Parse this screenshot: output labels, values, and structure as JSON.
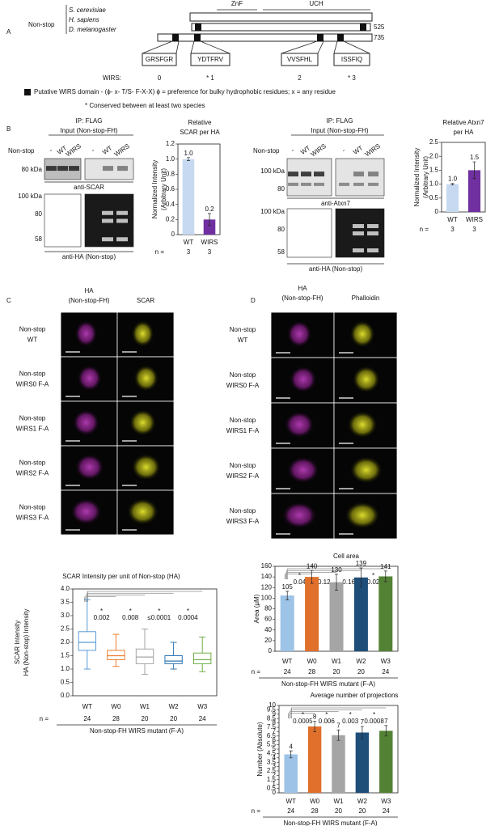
{
  "panel_a": {
    "label": "A",
    "protein": "Non-stop",
    "species": [
      "S. cerevisiae",
      "H. sapiens",
      "D. melanogaster"
    ],
    "domains": [
      "ZnF",
      "UCH"
    ],
    "lengths": [
      "525",
      "735"
    ],
    "motifs": [
      "GRSFGR",
      "YDTFRV",
      "VVSFHL",
      "ISSFIQ"
    ],
    "wirs_label": "WIRS:",
    "wirs_index": [
      "0",
      "* 1",
      "2",
      "* 3"
    ],
    "legend": "Putative WIRS domain - (ϕ- x- T/S- F-X-X) ϕ = preference for bulky hydrophobic residues; x = any residue",
    "footnote": "* Conserved between at least two species"
  },
  "panel_b": {
    "label": "B",
    "blots": [
      {
        "ip": "IP: FLAG",
        "input": "Input (Non-stop-FH)",
        "row_label": "Non-stop",
        "lanes": [
          "-",
          "WT",
          "WIRS",
          "-",
          "WT",
          "WIRS"
        ],
        "upper_markers": [
          "80 kDa"
        ],
        "upper_antibody": "anti-SCAR",
        "lower_markers": [
          "100 kDa",
          "80",
          "58"
        ],
        "lower_antibody": "anti-HA (Non-stop)"
      },
      {
        "ip": "IP: FLAG",
        "input": "Input (Non-stop-FH)",
        "row_label": "Non-stop",
        "lanes": [
          "-",
          "WT",
          "WIRS",
          "-",
          "WT",
          "WIRS"
        ],
        "upper_markers": [
          "100 kDa",
          "80"
        ],
        "upper_antibody": "anti-Atxn7",
        "lower_markers": [
          "100 kDa",
          "80",
          "58"
        ],
        "lower_antibody": "anti-HA (Non-stop)"
      }
    ],
    "charts": [
      {
        "type": "bar",
        "title": [
          "Relative",
          "SCAR per HA"
        ],
        "y_label": [
          "Normalized Intensity",
          "(Arbitrary Unit)"
        ],
        "categories": [
          "WT",
          "WIRS"
        ],
        "values": [
          1.0,
          0.2
        ],
        "value_labels": [
          "1.0",
          "0.2"
        ],
        "errors": [
          0.02,
          0.08
        ],
        "colors": [
          "#c6d9f1",
          "#7030a0"
        ],
        "ylim": [
          0,
          1.2
        ],
        "yticks": [
          0,
          0.2,
          0.4,
          0.6,
          0.8,
          {
            "value": 1.0,
            "label": "1.0"
          },
          1.2
        ],
        "n_label": "n =",
        "n": [
          3,
          3
        ]
      },
      {
        "type": "bar",
        "title": [
          "Relative Atxn7",
          "per HA"
        ],
        "y_label": [
          "Normalized Intensity",
          "(Arbitrary Unit)"
        ],
        "categories": [
          "WT",
          "WIRS"
        ],
        "values": [
          1.0,
          1.5
        ],
        "value_labels": [
          "1.0",
          "1.5"
        ],
        "errors": [
          0.03,
          0.3
        ],
        "colors": [
          "#c6d9f1",
          "#7030a0"
        ],
        "ylim": [
          0,
          2.5
        ],
        "yticks": [
          0,
          0.5,
          {
            "value": 1.0,
            "label": "1.0"
          },
          1.5,
          {
            "value": 2.0,
            "label": "2.0"
          },
          2.5
        ],
        "n_label": "n =",
        "n": [
          3,
          3
        ]
      }
    ]
  },
  "panel_c": {
    "label": "C",
    "columns": [
      [
        "HA",
        "(Non-stop-FH)"
      ],
      [
        "SCAR"
      ]
    ],
    "rows": [
      [
        "Non-stop",
        "WT"
      ],
      [
        "Non-stop",
        "WIRS0 F-A"
      ],
      [
        "Non-stop",
        "WIRS1 F-A"
      ],
      [
        "Non-stop",
        "WIRS2 F-A"
      ],
      [
        "Non-stop",
        "WIRS3 F-A"
      ]
    ],
    "chart": {
      "type": "box",
      "title": "SCAR Intensity per unit of Non-stop (HA)",
      "y_label": [
        "SCAR Intensity",
        "HA (Non-stop) Intensity"
      ],
      "categories": [
        "WT",
        "W0",
        "W1",
        "W2",
        "W3"
      ],
      "boxes": [
        {
          "min": 1.0,
          "q1": 1.7,
          "median": 2.0,
          "q3": 2.4,
          "max": 3.6
        },
        {
          "min": 1.1,
          "q1": 1.35,
          "median": 1.5,
          "q3": 1.7,
          "max": 2.3
        },
        {
          "min": 0.8,
          "q1": 1.2,
          "median": 1.45,
          "q3": 1.75,
          "max": 2.5
        },
        {
          "min": 1.0,
          "q1": 1.2,
          "median": 1.3,
          "q3": 1.5,
          "max": 2.0
        },
        {
          "min": 0.9,
          "q1": 1.2,
          "median": 1.35,
          "q3": 1.6,
          "max": 2.2
        }
      ],
      "colors": [
        "#5b9bd5",
        "#ed7d31",
        "#a5a5a5",
        "#2e75b6",
        "#70ad47"
      ],
      "ylim": [
        0,
        4
      ],
      "yticks": [
        {
          "value": 0,
          "label": "0.0"
        },
        0.5,
        {
          "value": 1,
          "label": "1.0"
        },
        1.5,
        {
          "value": 2,
          "label": "2.0"
        },
        2.5,
        {
          "value": 3,
          "label": "3.0"
        },
        3.5,
        {
          "value": 4,
          "label": "4.0"
        }
      ],
      "significance": [
        {
          "star": "*",
          "p": "0.002"
        },
        {
          "star": "*",
          "p": "0.008"
        },
        {
          "star": "*",
          "p": "≤0.0001"
        },
        {
          "star": "*",
          "p": "0.0004"
        }
      ],
      "n_label": "n =",
      "n": [
        24,
        28,
        20,
        20,
        24
      ],
      "x_label": "Non-stop-FH WIRS mutant (F-A)"
    }
  },
  "panel_d": {
    "label": "D",
    "columns": [
      [
        "HA",
        "(Non-stop-FH)"
      ],
      [
        "Phalloidin"
      ]
    ],
    "rows": [
      [
        "Non-stop",
        "WT"
      ],
      [
        "Non-stop",
        "WIRS0 F-A"
      ],
      [
        "Non-stop",
        "WIRS1 F-A"
      ],
      [
        "Non-stop",
        "WIRS2 F-A"
      ],
      [
        "Non-stop",
        "WIRS3 F-A"
      ]
    ],
    "charts": [
      {
        "type": "bar",
        "title": [
          "Cell area"
        ],
        "y_label": [
          "Area (μM)"
        ],
        "categories": [
          "WT",
          "W0",
          "W1",
          "W2",
          "W3"
        ],
        "values": [
          105,
          140,
          130,
          139,
          141
        ],
        "errors": [
          8,
          12,
          15,
          18,
          10
        ],
        "colors": [
          "#9dc3e6",
          "#e0702b",
          "#a5a5a5",
          "#1f4e79",
          "#548235"
        ],
        "ylim": [
          0,
          160
        ],
        "yticks": [
          0,
          20,
          40,
          60,
          80,
          100,
          120,
          140,
          160
        ],
        "significance": [
          {
            "star": "*",
            "p": "0.04"
          },
          {
            "p": "0.12"
          },
          {
            "p": "0.16"
          },
          {
            "star": "*",
            "p": "0.02"
          }
        ],
        "n_label": "n =",
        "n": [
          24,
          28,
          20,
          20,
          24
        ],
        "x_label": "Non-stop-FH WIRS mutant (F-A)"
      },
      {
        "type": "bar",
        "title": [
          "Average number of projections"
        ],
        "y_label": [
          "Number (Absolute)"
        ],
        "categories": [
          "WT",
          "W0",
          "W1",
          "W2",
          "W3"
        ],
        "values": [
          4.4,
          7.6,
          6.6,
          6.9,
          7.1
        ],
        "value_labels": [
          "4",
          "8",
          "7",
          "7",
          "7"
        ],
        "errors": [
          0.4,
          0.6,
          0.6,
          0.7,
          0.6
        ],
        "colors": [
          "#9dc3e6",
          "#e0702b",
          "#a5a5a5",
          "#1f4e79",
          "#548235"
        ],
        "ylim": [
          0,
          10
        ],
        "yticks": [
          0,
          0.5,
          1,
          1.5,
          2,
          2.5,
          3,
          3.5,
          4,
          4.5,
          5,
          5.5,
          6,
          6.5,
          7,
          7.5,
          8,
          8.5,
          9,
          9.5,
          10
        ],
        "significance": [
          {
            "star": "*",
            "p": "0.0005"
          },
          {
            "star": "*",
            "p": "0.006"
          },
          {
            "star": "*",
            "p": "0.003"
          },
          {
            "star": "*",
            "p": "0.0008"
          }
        ],
        "n_label": "n =",
        "n": [
          24,
          28,
          20,
          20,
          24
        ],
        "x_label": "Non-stop-FH WIRS mutant (F-A)"
      }
    ]
  }
}
